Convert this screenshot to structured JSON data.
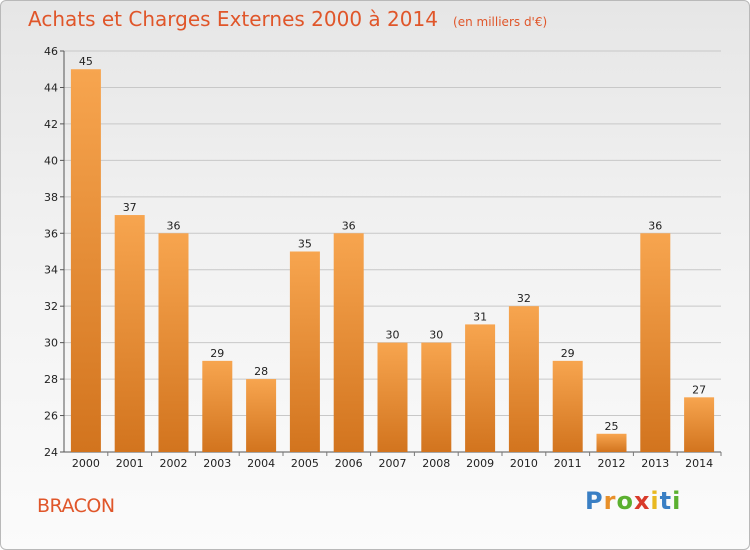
{
  "header": {
    "title": "Achats et Charges Externes 2000 à 2014",
    "subtitle": "(en milliers d'€)"
  },
  "footer": {
    "commune": "BRACON",
    "logo_letters": [
      "P",
      "r",
      "o",
      "x",
      "i",
      "t",
      "i"
    ],
    "logo_colors": [
      "#3a7fc4",
      "#e8902a",
      "#5bb030",
      "#d83a2a",
      "#e8b820",
      "#3a7fc4",
      "#5bb030"
    ]
  },
  "colors": {
    "title": "#e0562a",
    "bar_light": "#f7a54f",
    "bar_dark": "#d2741e",
    "grid": "#c8c8c8"
  },
  "chart_data": {
    "type": "bar",
    "title": "Achats et Charges Externes 2000 à 2014",
    "subtitle": "(en milliers d'€)",
    "categories": [
      "2000",
      "2001",
      "2002",
      "2003",
      "2004",
      "2005",
      "2006",
      "2007",
      "2008",
      "2009",
      "2010",
      "2011",
      "2012",
      "2013",
      "2014"
    ],
    "values": [
      45,
      37,
      36,
      29,
      28,
      35,
      36,
      30,
      30,
      31,
      32,
      29,
      25,
      36,
      27
    ],
    "ylim": [
      24,
      46
    ],
    "yticks": [
      24,
      26,
      28,
      30,
      32,
      34,
      36,
      38,
      40,
      42,
      44,
      46
    ],
    "grid": true,
    "xlabel": "",
    "ylabel": ""
  }
}
